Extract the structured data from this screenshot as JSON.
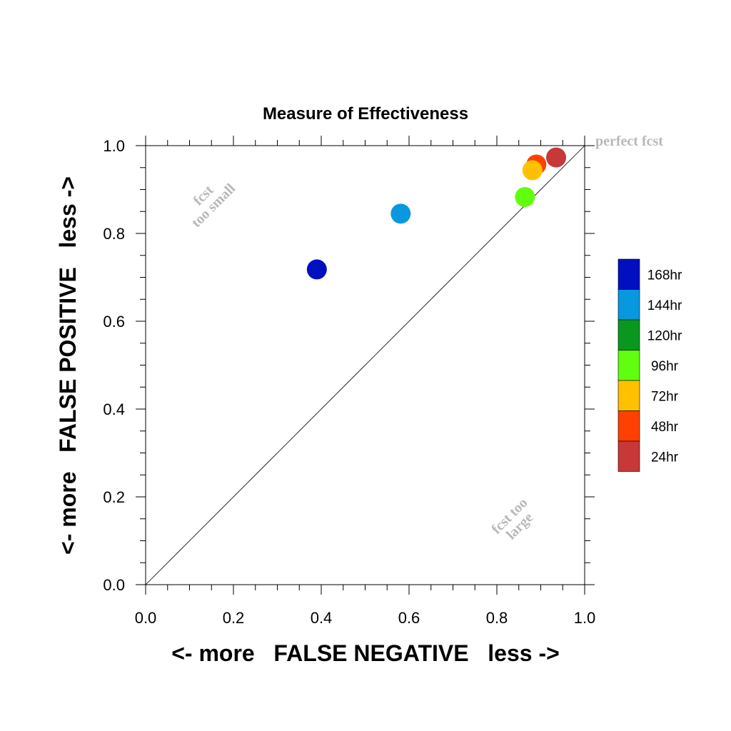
{
  "chart_data": {
    "type": "scatter",
    "title": "Measure of Effectiveness",
    "xlabel": "<- more   FALSE NEGATIVE   less ->",
    "ylabel": "<- more   FALSE POSITIVE   less ->",
    "xlim": [
      0.0,
      1.0
    ],
    "ylim": [
      0.0,
      1.0
    ],
    "xticks": [
      "0.0",
      "0.2",
      "0.4",
      "0.6",
      "0.8",
      "1.0"
    ],
    "yticks": [
      "0.0",
      "0.2",
      "0.4",
      "0.6",
      "0.8",
      "1.0"
    ],
    "diagonal_line": true,
    "grid": false,
    "legend_position": "right",
    "annotations": [
      {
        "lines": [
          "fcst",
          "too small"
        ]
      },
      {
        "lines": [
          "fcst too",
          "large"
        ]
      },
      {
        "lines": [
          "perfect fcst"
        ]
      }
    ],
    "series": [
      {
        "name": "168hr",
        "color": "#0010c0",
        "x": 0.39,
        "y": 0.718
      },
      {
        "name": "144hr",
        "color": "#0898e0",
        "x": 0.581,
        "y": 0.845
      },
      {
        "name": "120hr",
        "color": "#089820",
        "x": null,
        "y": null
      },
      {
        "name": "96hr",
        "color": "#60ff10",
        "x": 0.864,
        "y": 0.883
      },
      {
        "name": "72hr",
        "color": "#ffc000",
        "x": 0.881,
        "y": 0.944
      },
      {
        "name": "48hr",
        "color": "#ff4000",
        "x": 0.89,
        "y": 0.957
      },
      {
        "name": "24hr",
        "color": "#c83838",
        "x": 0.935,
        "y": 0.973
      }
    ]
  }
}
